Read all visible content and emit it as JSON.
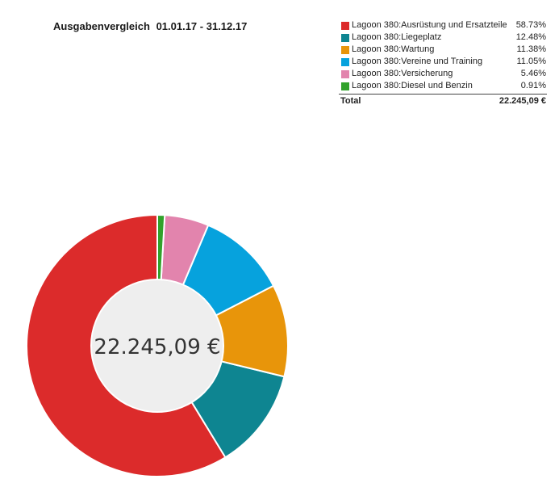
{
  "header": {
    "title": "Ausgabenvergleich",
    "range": "01.01.17 - 31.12.17"
  },
  "center_value": "22.245,09 €",
  "legend": {
    "items": [
      {
        "label": "Lagoon 380:Ausrüstung und Ersatzteile",
        "pct": "58.73%"
      },
      {
        "label": "Lagoon 380:Liegeplatz",
        "pct": "12.48%"
      },
      {
        "label": "Lagoon 380:Wartung",
        "pct": "11.38%"
      },
      {
        "label": "Lagoon 380:Vereine und Training",
        "pct": "11.05%"
      },
      {
        "label": "Lagoon 380:Versicherung",
        "pct": "5.46%"
      },
      {
        "label": "Lagoon 380:Diesel und Benzin",
        "pct": "0.91%"
      }
    ],
    "total_label": "Total",
    "total_value": "22.245,09 €"
  },
  "chart_data": {
    "type": "pie",
    "variant": "donut",
    "title": "Ausgabenvergleich  01.01.17 - 31.12.17",
    "start_angle_deg": 90,
    "direction": "counterclockwise",
    "legend_position": "top-right",
    "total": 22245.09,
    "slices": [
      {
        "label": "Lagoon 380:Ausrüstung und Ersatzteile",
        "value": 58.73,
        "color": "#dc2b2b"
      },
      {
        "label": "Lagoon 380:Liegeplatz",
        "value": 12.48,
        "color": "#0e8591"
      },
      {
        "label": "Lagoon 380:Wartung",
        "value": 11.38,
        "color": "#e8950a"
      },
      {
        "label": "Lagoon 380:Vereine und Training",
        "value": 11.05,
        "color": "#06a2dd"
      },
      {
        "label": "Lagoon 380:Versicherung",
        "value": 5.46,
        "color": "#e284ad"
      },
      {
        "label": "Lagoon 380:Diesel und Benzin",
        "value": 0.91,
        "color": "#31a22b"
      }
    ]
  },
  "colors": {
    "donut_hole": "#eeeeee",
    "slice_border": "#ffffff"
  }
}
